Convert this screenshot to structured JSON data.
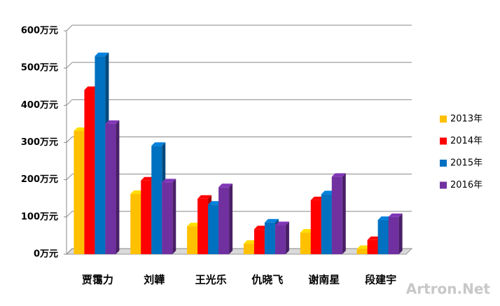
{
  "chart_data": {
    "type": "bar3d",
    "categories": [
      "贾霭力",
      "刘韡",
      "王光乐",
      "仇晓飞",
      "谢南星",
      "段建宇"
    ],
    "series": [
      {
        "name": "2013年",
        "color": "#ffc000",
        "values": [
          331,
          162,
          75,
          28,
          58,
          14
        ]
      },
      {
        "name": "2014年",
        "color": "#ff0000",
        "values": [
          441,
          198,
          149,
          67,
          145,
          38
        ]
      },
      {
        "name": "2015年",
        "color": "#0070c0",
        "values": [
          532,
          291,
          133,
          85,
          161,
          92
        ]
      },
      {
        "name": "2016年",
        "color": "#7030a0",
        "values": [
          350,
          193,
          180,
          78,
          208,
          100
        ]
      }
    ],
    "ylim": [
      0,
      600
    ],
    "yticks": [
      {
        "value": 0,
        "label": "0万元"
      },
      {
        "value": 100,
        "label": "100万元"
      },
      {
        "value": 200,
        "label": "200万元"
      },
      {
        "value": 300,
        "label": "300万元"
      },
      {
        "value": 400,
        "label": "400万元"
      },
      {
        "value": 500,
        "label": "500万元"
      },
      {
        "value": 600,
        "label": "600万元"
      }
    ],
    "grid": true,
    "legend": "right",
    "watermark": "Artron.Net"
  }
}
